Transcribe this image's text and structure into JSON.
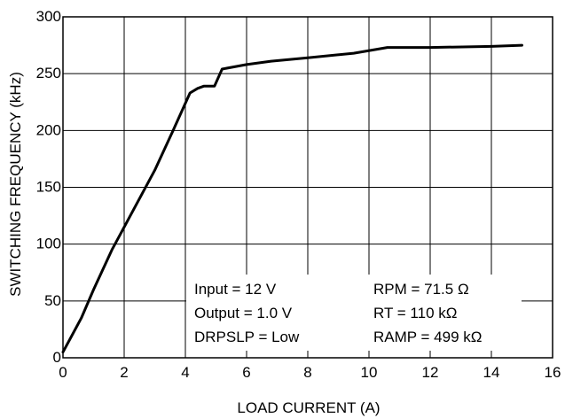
{
  "chart_data": {
    "type": "line",
    "title": "",
    "xlabel": "LOAD CURRENT (A)",
    "ylabel": "SWITCHING FREQUENCY (kHz)",
    "xlim": [
      0,
      16
    ],
    "ylim": [
      0,
      300
    ],
    "xticks": [
      0,
      2,
      4,
      6,
      8,
      10,
      12,
      14,
      16
    ],
    "yticks": [
      0,
      50,
      100,
      150,
      200,
      250,
      300
    ],
    "grid": true,
    "legend": "none",
    "line_color": "#000000",
    "series": [
      {
        "x": [
          0,
          0.6,
          1.0,
          1.6,
          2.2,
          3.0,
          3.6,
          4.15,
          4.4,
          4.6,
          4.95,
          5.2,
          6.0,
          6.8,
          8.0,
          9.5,
          10.6,
          12.0,
          14.0,
          15.0
        ],
        "values": [
          5,
          35,
          60,
          95,
          125,
          165,
          200,
          233,
          237,
          239,
          239,
          254,
          258,
          261,
          264,
          268,
          273,
          273,
          274,
          275
        ]
      }
    ],
    "annotations": [
      "Input = 12 V",
      "Output = 1.0 V",
      "DRPSLP = Low",
      "RPM = 71.5 Ω",
      "RT = 110 kΩ",
      "RAMP = 499 kΩ"
    ]
  }
}
